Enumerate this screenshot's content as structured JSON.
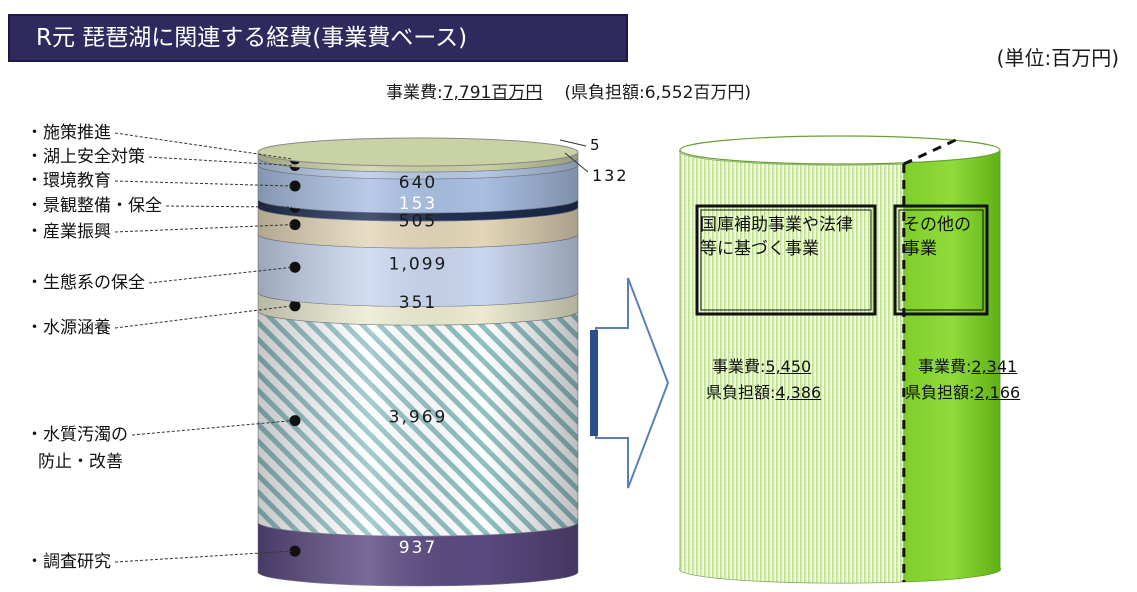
{
  "title": "R元 琵琶湖に関連する経費(事業費ベース)",
  "unit": "(単位:百万円)",
  "summary": {
    "label": "事業費:",
    "value": "7,791百万円",
    "sub": "(県負担額:6,552百万円)"
  },
  "chart_data": {
    "type": "stacked-cylinder",
    "title": "R元 琵琶湖に関連する経費(事業費ベース)",
    "unit": "百万円",
    "segments": [
      {
        "category": "施策推進",
        "value": 5,
        "value_label": "5",
        "color": "#c9d2a4"
      },
      {
        "category": "湖上安全対策",
        "value": 132,
        "value_label": "132",
        "color": "#b4c9e6"
      },
      {
        "category": "環境教育",
        "value": 640,
        "value_label": "640",
        "color": "#a9bfe2"
      },
      {
        "category": "景観整備・保全",
        "value": 153,
        "value_label": "153",
        "color": "#1e2e52"
      },
      {
        "category": "産業振興",
        "value": 505,
        "value_label": "505",
        "color": "#e3d6b8"
      },
      {
        "category": "生態系の保全",
        "value": 1099,
        "value_label": "1,099",
        "color": "#c8d6ef"
      },
      {
        "category": "水源涵養",
        "value": 351,
        "value_label": "351",
        "color": "#ecebd0"
      },
      {
        "category": "水質汚濁の防止・改善",
        "value": 3969,
        "value_label": "3,969",
        "color": "#8fc1c3"
      },
      {
        "category": "調査研究",
        "value": 937,
        "value_label": "937",
        "color": "#5a4a80"
      }
    ],
    "split": {
      "total": 7791,
      "left": {
        "title": "国庫補助事業や法律等に基づく事業",
        "project_label": "事業費:",
        "project_value": "5,450",
        "burden_label": "県負担額:",
        "burden_value": "4,386"
      },
      "right": {
        "title": "その他の事業",
        "project_label": "事業費:",
        "project_value": "2,341",
        "burden_label": "県負担額:",
        "burden_value": "2,166"
      }
    }
  }
}
